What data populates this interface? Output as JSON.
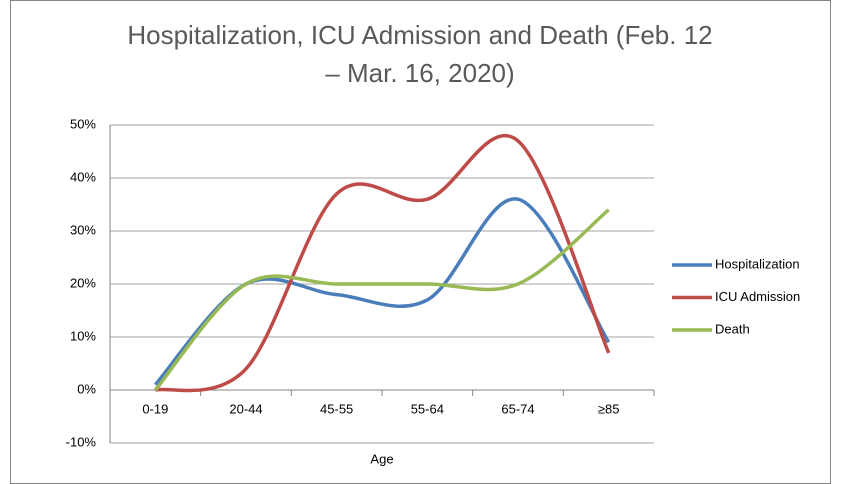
{
  "chart_data": {
    "type": "line",
    "title": "Hospitalization, ICU Admission and Death (Feb. 12\n– Mar. 16, 2020)",
    "x_label": "Age",
    "categories": [
      "0-19",
      "20-44",
      "45-55",
      "55-64",
      "65-74",
      "≥85"
    ],
    "series": [
      {
        "name": "Hospitalization",
        "color": "#4a7ebb",
        "values": [
          1,
          20,
          18,
          17,
          36,
          9
        ]
      },
      {
        "name": "ICU Admission",
        "color": "#be4b48",
        "values": [
          0,
          4,
          37,
          36,
          47,
          7
        ]
      },
      {
        "name": "Death",
        "color": "#98b954",
        "values": [
          0,
          20,
          20,
          20,
          20,
          34
        ]
      }
    ],
    "ylim": [
      -10,
      50
    ],
    "yticks": [
      {
        "value": -10,
        "label": "-10%"
      },
      {
        "value": 0,
        "label": "0%"
      },
      {
        "value": 10,
        "label": "10%"
      },
      {
        "value": 20,
        "label": "20%"
      },
      {
        "value": 30,
        "label": "30%"
      },
      {
        "value": 40,
        "label": "40%"
      },
      {
        "value": 50,
        "label": "50%"
      }
    ],
    "grid": true,
    "smooth": true,
    "legend": "right"
  }
}
